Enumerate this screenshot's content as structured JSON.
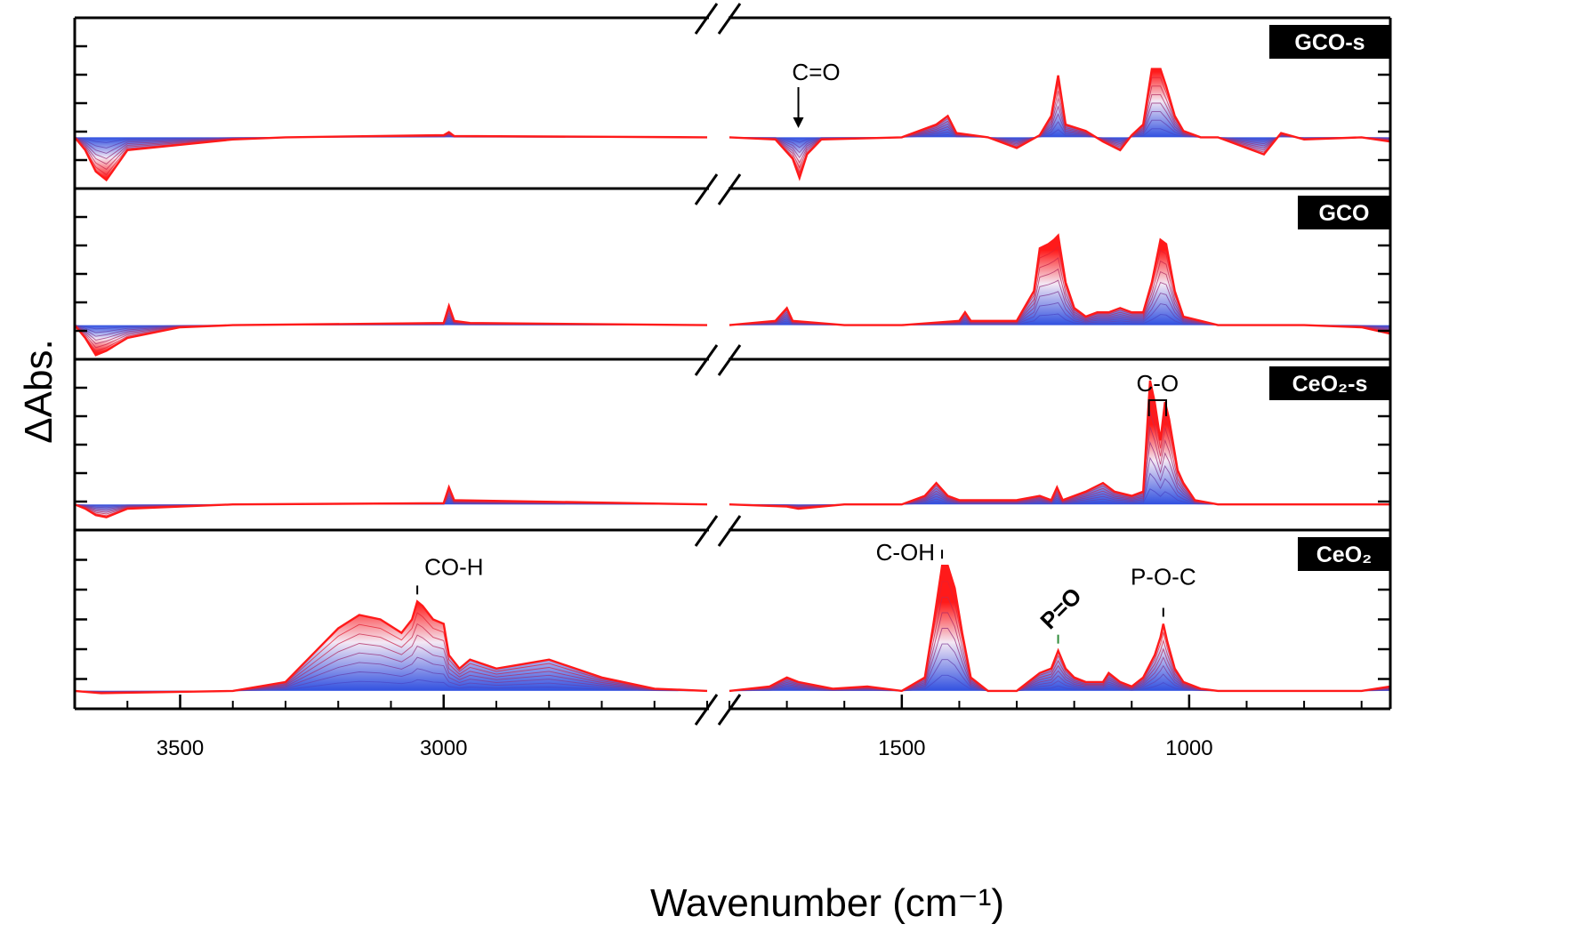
{
  "chart_data": {
    "type": "line",
    "xlabel": "Wavenumber (cm⁻¹)",
    "ylabel": "ΔAbs.",
    "x_axis": {
      "reversed": true,
      "broken": true,
      "segments": [
        [
          3700,
          2500
        ],
        [
          1800,
          650
        ]
      ],
      "ticks": [
        3500,
        3000,
        1500,
        1000
      ],
      "tick_labels": [
        "3500",
        "3000",
        "1500",
        "1000"
      ]
    },
    "color_gradient": {
      "start": "#3050e0",
      "end": "#ff1a1a"
    },
    "panels": [
      {
        "label": "GCO-s",
        "ylim": [
          -1.2,
          2.8
        ],
        "annotations": [
          {
            "text": "C=O",
            "x": 1680,
            "arrow": true
          }
        ],
        "series": [
          {
            "name": "",
            "points": [
              [
                3700,
                0
              ],
              [
                3680,
                -0.3
              ],
              [
                3660,
                -0.8
              ],
              [
                3640,
                -1
              ],
              [
                3600,
                -0.3
              ],
              [
                3400,
                -0.05
              ],
              [
                3300,
                0
              ],
              [
                3000,
                0.05
              ],
              [
                2990,
                0.12
              ],
              [
                2980,
                0.03
              ],
              [
                2500,
                0
              ],
              [
                1800,
                0
              ],
              [
                1720,
                -0.05
              ],
              [
                1690,
                -0.5
              ],
              [
                1678,
                -0.95
              ],
              [
                1665,
                -0.4
              ],
              [
                1640,
                -0.05
              ],
              [
                1500,
                0
              ],
              [
                1440,
                0.3
              ],
              [
                1420,
                0.5
              ],
              [
                1405,
                0.1
              ],
              [
                1350,
                0
              ],
              [
                1300,
                -0.25
              ],
              [
                1260,
                0.05
              ],
              [
                1240,
                0.5
              ],
              [
                1228,
                1.45
              ],
              [
                1215,
                0.3
              ],
              [
                1180,
                0.15
              ],
              [
                1150,
                -0.1
              ],
              [
                1120,
                -0.3
              ],
              [
                1100,
                0.05
              ],
              [
                1080,
                0.3
              ],
              [
                1065,
                1.6
              ],
              [
                1050,
                1.6
              ],
              [
                1040,
                1.2
              ],
              [
                1025,
                0.5
              ],
              [
                1010,
                0.15
              ],
              [
                980,
                0
              ],
              [
                950,
                0
              ],
              [
                870,
                -0.4
              ],
              [
                840,
                0.1
              ],
              [
                800,
                -0.05
              ],
              [
                700,
                0
              ],
              [
                650,
                -0.1
              ]
            ]
          }
        ]
      },
      {
        "label": "GCO",
        "ylim": [
          -0.8,
          3.2
        ],
        "annotations": [],
        "series": [
          {
            "name": "",
            "points": [
              [
                3700,
                0
              ],
              [
                3680,
                -0.3
              ],
              [
                3660,
                -0.7
              ],
              [
                3640,
                -0.6
              ],
              [
                3600,
                -0.3
              ],
              [
                3500,
                -0.05
              ],
              [
                3400,
                0
              ],
              [
                3000,
                0.05
              ],
              [
                2990,
                0.45
              ],
              [
                2980,
                0.1
              ],
              [
                2950,
                0.05
              ],
              [
                2500,
                0
              ],
              [
                1800,
                0
              ],
              [
                1720,
                0.1
              ],
              [
                1700,
                0.4
              ],
              [
                1690,
                0.1
              ],
              [
                1600,
                0
              ],
              [
                1500,
                0
              ],
              [
                1400,
                0.1
              ],
              [
                1390,
                0.3
              ],
              [
                1380,
                0.1
              ],
              [
                1300,
                0.1
              ],
              [
                1270,
                0.8
              ],
              [
                1260,
                1.8
              ],
              [
                1245,
                1.9
              ],
              [
                1235,
                2.0
              ],
              [
                1228,
                2.1
              ],
              [
                1215,
                1.0
              ],
              [
                1200,
                0.4
              ],
              [
                1180,
                0.2
              ],
              [
                1160,
                0.3
              ],
              [
                1140,
                0.3
              ],
              [
                1120,
                0.4
              ],
              [
                1100,
                0.3
              ],
              [
                1080,
                0.3
              ],
              [
                1065,
                1.0
              ],
              [
                1050,
                2.0
              ],
              [
                1040,
                1.9
              ],
              [
                1025,
                0.8
              ],
              [
                1010,
                0.2
              ],
              [
                950,
                0
              ],
              [
                800,
                0
              ],
              [
                700,
                -0.05
              ],
              [
                650,
                -0.2
              ]
            ]
          }
        ]
      },
      {
        "label": "CeO₂-s",
        "ylim": [
          -0.6,
          3.4
        ],
        "annotations": [
          {
            "text": "C-O",
            "x": 1045,
            "bracket": [
              1070,
              1040
            ]
          }
        ],
        "series": [
          {
            "name": "",
            "points": [
              [
                3700,
                0
              ],
              [
                3680,
                -0.1
              ],
              [
                3660,
                -0.25
              ],
              [
                3640,
                -0.3
              ],
              [
                3600,
                -0.1
              ],
              [
                3400,
                0
              ],
              [
                3000,
                0.03
              ],
              [
                2990,
                0.4
              ],
              [
                2980,
                0.1
              ],
              [
                2500,
                0
              ],
              [
                1800,
                0
              ],
              [
                1700,
                -0.05
              ],
              [
                1680,
                -0.1
              ],
              [
                1600,
                0
              ],
              [
                1500,
                0
              ],
              [
                1460,
                0.2
              ],
              [
                1440,
                0.5
              ],
              [
                1420,
                0.2
              ],
              [
                1400,
                0.1
              ],
              [
                1300,
                0.1
              ],
              [
                1260,
                0.2
              ],
              [
                1240,
                0.1
              ],
              [
                1230,
                0.4
              ],
              [
                1220,
                0.1
              ],
              [
                1180,
                0.3
              ],
              [
                1150,
                0.5
              ],
              [
                1130,
                0.3
              ],
              [
                1100,
                0.2
              ],
              [
                1080,
                0.3
              ],
              [
                1068,
                2.9
              ],
              [
                1060,
                2.4
              ],
              [
                1050,
                1.5
              ],
              [
                1042,
                2.4
              ],
              [
                1035,
                2.0
              ],
              [
                1020,
                0.8
              ],
              [
                1010,
                0.5
              ],
              [
                990,
                0.1
              ],
              [
                950,
                0
              ],
              [
                700,
                0
              ],
              [
                650,
                0
              ]
            ]
          }
        ]
      },
      {
        "label": "CeO₂",
        "ylim": [
          -0.4,
          3.6
        ],
        "annotations": [
          {
            "text": "CO-H",
            "x": 3050,
            "color": "#000000"
          },
          {
            "text": "C-OH",
            "x": 1430,
            "color": "#000000"
          },
          {
            "text": "P=O",
            "x": 1228,
            "color": "#2e8b3a"
          },
          {
            "text": "P-O-C",
            "x": 1045,
            "color": "#000000"
          }
        ],
        "series": [
          {
            "name": "",
            "points": [
              [
                3700,
                0
              ],
              [
                3650,
                -0.05
              ],
              [
                3400,
                0
              ],
              [
                3300,
                0.2
              ],
              [
                3250,
                0.8
              ],
              [
                3200,
                1.4
              ],
              [
                3160,
                1.7
              ],
              [
                3120,
                1.6
              ],
              [
                3080,
                1.3
              ],
              [
                3060,
                1.6
              ],
              [
                3050,
                2.0
              ],
              [
                3040,
                1.9
              ],
              [
                3020,
                1.6
              ],
              [
                3000,
                1.5
              ],
              [
                2990,
                0.8
              ],
              [
                2970,
                0.5
              ],
              [
                2950,
                0.7
              ],
              [
                2900,
                0.5
              ],
              [
                2850,
                0.6
              ],
              [
                2800,
                0.7
              ],
              [
                2750,
                0.5
              ],
              [
                2700,
                0.3
              ],
              [
                2600,
                0.05
              ],
              [
                2500,
                0
              ],
              [
                1800,
                0
              ],
              [
                1730,
                0.1
              ],
              [
                1700,
                0.3
              ],
              [
                1680,
                0.2
              ],
              [
                1620,
                0.05
              ],
              [
                1560,
                0.1
              ],
              [
                1500,
                0
              ],
              [
                1460,
                0.3
              ],
              [
                1445,
                1.5
              ],
              [
                1430,
                2.8
              ],
              [
                1420,
                2.8
              ],
              [
                1408,
                2.3
              ],
              [
                1395,
                1.3
              ],
              [
                1380,
                0.3
              ],
              [
                1350,
                0
              ],
              [
                1300,
                0
              ],
              [
                1260,
                0.4
              ],
              [
                1240,
                0.5
              ],
              [
                1228,
                0.9
              ],
              [
                1215,
                0.5
              ],
              [
                1200,
                0.3
              ],
              [
                1180,
                0.2
              ],
              [
                1150,
                0.2
              ],
              [
                1140,
                0.4
              ],
              [
                1120,
                0.2
              ],
              [
                1100,
                0.1
              ],
              [
                1080,
                0.3
              ],
              [
                1060,
                0.8
              ],
              [
                1050,
                1.2
              ],
              [
                1045,
                1.5
              ],
              [
                1038,
                1.1
              ],
              [
                1025,
                0.5
              ],
              [
                1010,
                0.2
              ],
              [
                980,
                0.05
              ],
              [
                950,
                0
              ],
              [
                700,
                0
              ],
              [
                650,
                0.1
              ]
            ]
          }
        ]
      }
    ]
  }
}
